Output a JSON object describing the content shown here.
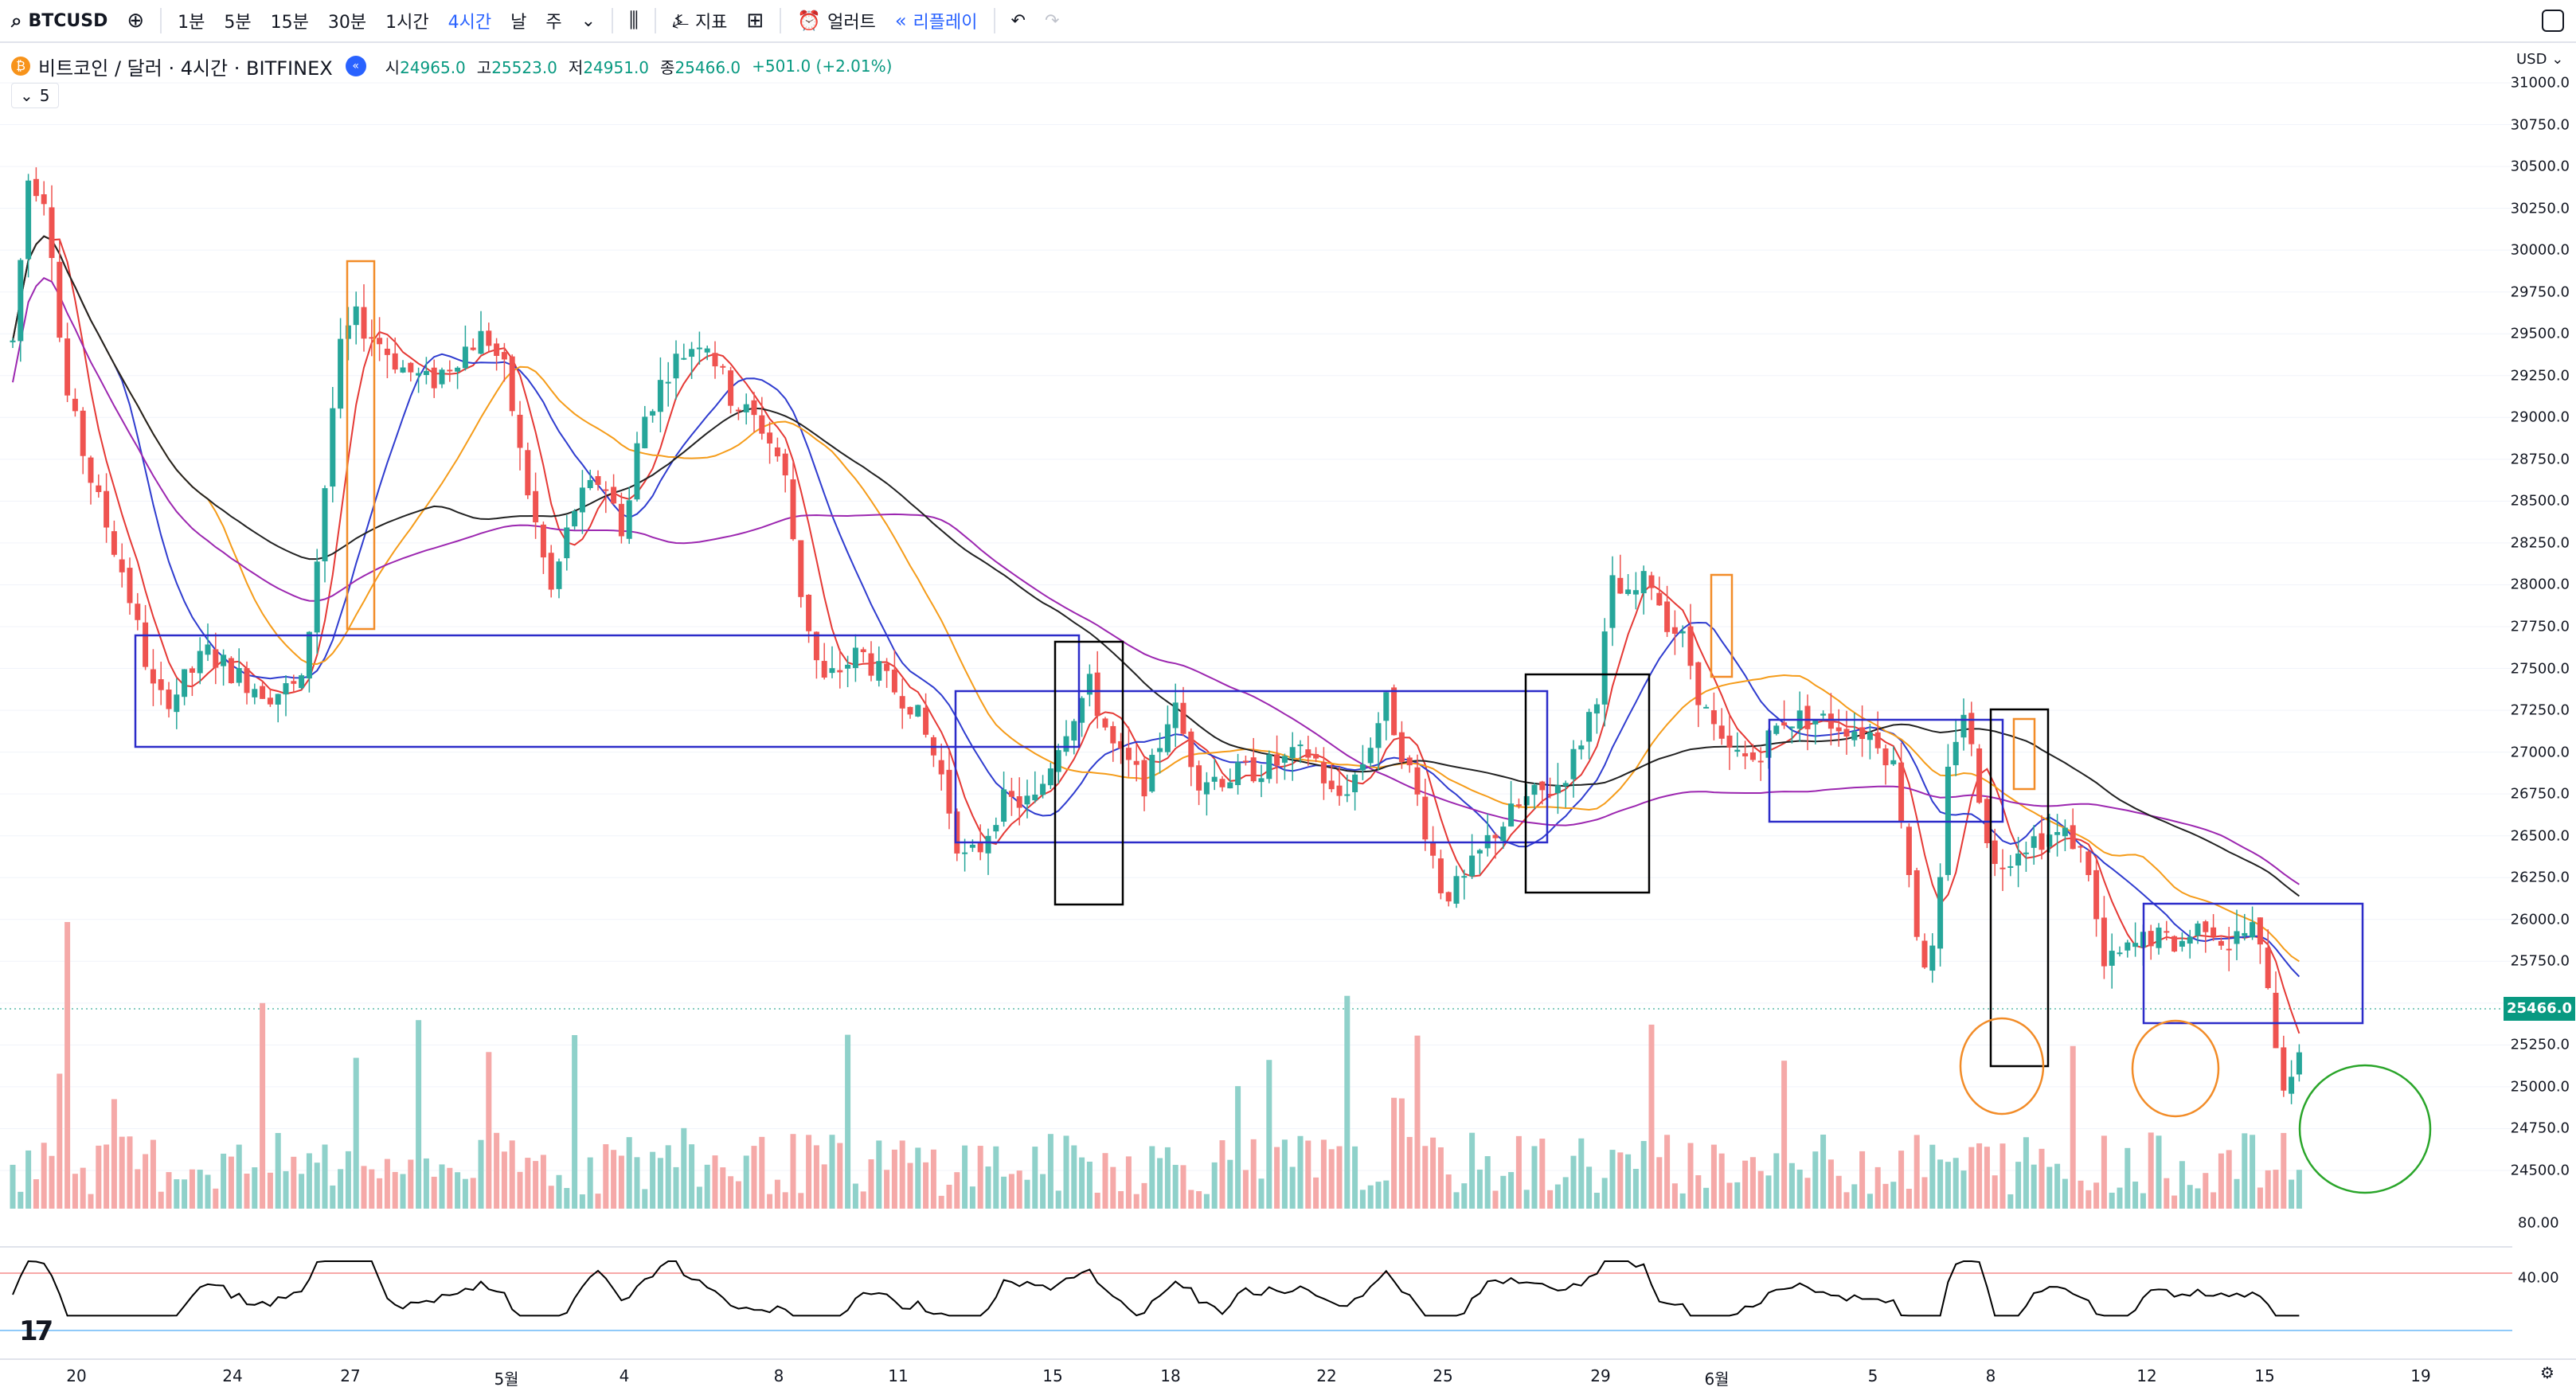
{
  "toolbar": {
    "symbol": "BTCUSD",
    "intervals": [
      "1분",
      "5분",
      "15분",
      "30분",
      "1시간",
      "4시간",
      "날",
      "주"
    ],
    "active_interval": "4시간",
    "indicators_label": "지표",
    "alert_label": "얼러트",
    "replay_label": "리플레이"
  },
  "legend": {
    "title": "비트코인 / 달러 · 4시간 · BITFINEX",
    "open_label": "시",
    "open": "24965.0",
    "high_label": "고",
    "high": "25523.0",
    "low_label": "저",
    "low": "24951.0",
    "close_label": "종",
    "close": "25466.0",
    "change": "+501.0 (+2.01%)",
    "indicator_count": "5"
  },
  "price_axis": {
    "currency": "USD",
    "labels": [
      "31000.0",
      "30750.0",
      "30500.0",
      "30250.0",
      "30000.0",
      "29750.0",
      "29500.0",
      "29250.0",
      "29000.0",
      "28750.0",
      "28500.0",
      "28250.0",
      "28000.0",
      "27750.0",
      "27500.0",
      "27250.0",
      "27000.0",
      "26750.0",
      "26500.0",
      "26250.0",
      "26000.0",
      "25750.0",
      "25500.0",
      "25250.0",
      "25000.0",
      "24750.0",
      "24500.0"
    ],
    "current_price": "25466.0"
  },
  "rsi_axis": {
    "labels": [
      "80.00",
      "40.00"
    ]
  },
  "time_axis": {
    "labels": [
      "20",
      "24",
      "27",
      "5월",
      "4",
      "8",
      "11",
      "15",
      "18",
      "22",
      "25",
      "29",
      "6월",
      "5",
      "8",
      "12",
      "15",
      "19"
    ]
  },
  "colors": {
    "up": "#26a69a",
    "down": "#ef5350",
    "accent": "#2962ff"
  },
  "chart_data": {
    "type": "candlestick",
    "symbol": "BTCUSD",
    "timeframe": "4h",
    "ylim": [
      24400,
      31100
    ],
    "last": {
      "open": 24965.0,
      "high": 25523.0,
      "low": 24951.0,
      "close": 25466.0
    },
    "moving_averages": [
      "red",
      "blue",
      "orange",
      "purple",
      "black"
    ],
    "rsi_levels": [
      80,
      40
    ]
  }
}
